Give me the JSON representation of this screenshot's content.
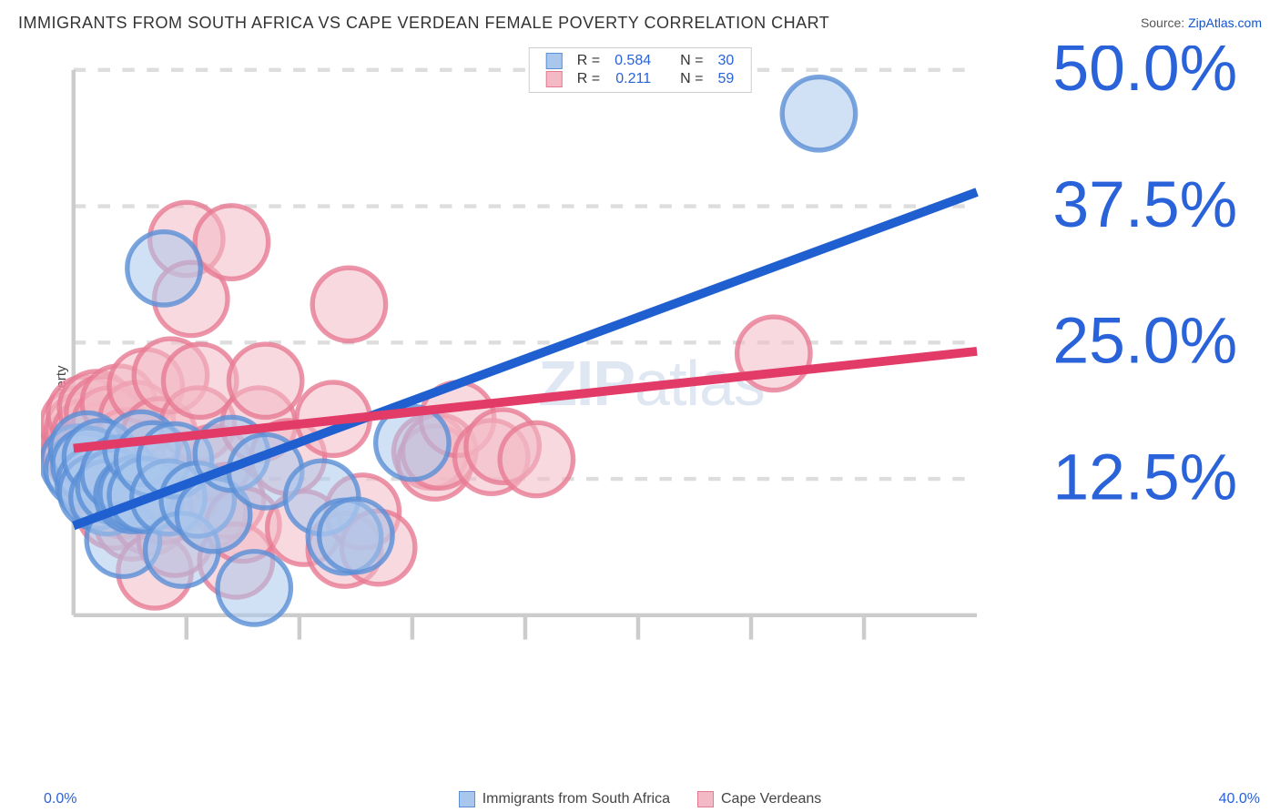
{
  "title": "IMMIGRANTS FROM SOUTH AFRICA VS CAPE VERDEAN FEMALE POVERTY CORRELATION CHART",
  "source_label": "Source: ",
  "source_name": "ZipAtlas.com",
  "ylabel": "Female Poverty",
  "watermark_bold": "ZIP",
  "watermark_light": "atlas",
  "chart": {
    "type": "scatter",
    "xlim": [
      0,
      40
    ],
    "ylim": [
      0,
      50
    ],
    "x_ticks": [
      0,
      40
    ],
    "x_tick_labels": [
      "0.0%",
      "40.0%"
    ],
    "y_ticks": [
      12.5,
      25.0,
      37.5,
      50.0
    ],
    "y_tick_labels": [
      "12.5%",
      "25.0%",
      "37.5%",
      "50.0%"
    ],
    "x_minor_ticks": [
      5,
      10,
      15,
      20,
      25,
      30,
      35
    ],
    "grid_color": "#dddddd",
    "axis_color": "#cccccc",
    "tick_label_color": "#2962d9",
    "background_color": "#ffffff",
    "marker_radius": 9,
    "marker_opacity": 0.55,
    "marker_stroke_width": 1.2,
    "line_width": 2.2,
    "series": [
      {
        "name": "Immigrants from South Africa",
        "fill_color": "#a9c7ec",
        "stroke_color": "#5a8fd6",
        "line_color": "#1f5fd0",
        "R": "0.584",
        "N": "30",
        "trend": {
          "x1": 0,
          "y1": 8.2,
          "x2": 40,
          "y2": 38.8
        },
        "points": [
          [
            0.2,
            14.0
          ],
          [
            0.4,
            13.3
          ],
          [
            0.6,
            15.2
          ],
          [
            0.7,
            13.8
          ],
          [
            0.9,
            12.0
          ],
          [
            1.0,
            11.3
          ],
          [
            1.2,
            14.5
          ],
          [
            1.5,
            10.8
          ],
          [
            1.8,
            11.8
          ],
          [
            2.0,
            13.0
          ],
          [
            2.2,
            6.9
          ],
          [
            2.6,
            11.0
          ],
          [
            2.8,
            11.2
          ],
          [
            3.0,
            15.3
          ],
          [
            3.2,
            11.0
          ],
          [
            3.5,
            14.3
          ],
          [
            4.0,
            31.8
          ],
          [
            4.2,
            10.8
          ],
          [
            4.5,
            14.2
          ],
          [
            4.8,
            6.0
          ],
          [
            5.5,
            10.6
          ],
          [
            6.2,
            9.2
          ],
          [
            7.0,
            14.8
          ],
          [
            8.0,
            2.5
          ],
          [
            8.5,
            13.2
          ],
          [
            11.0,
            10.8
          ],
          [
            12.0,
            7.2
          ],
          [
            12.5,
            7.3
          ],
          [
            15.0,
            15.8
          ],
          [
            33.0,
            46.0
          ]
        ]
      },
      {
        "name": "Cape Verdeans",
        "fill_color": "#f3b9c5",
        "stroke_color": "#e77a93",
        "line_color": "#e23b68",
        "R": "0.211",
        "N": "59",
        "trend": {
          "x1": 0,
          "y1": 15.3,
          "x2": 40,
          "y2": 24.2
        },
        "points": [
          [
            0.2,
            15.5
          ],
          [
            0.2,
            17.5
          ],
          [
            0.3,
            15.0
          ],
          [
            0.4,
            17.0
          ],
          [
            0.5,
            18.5
          ],
          [
            0.6,
            14.0
          ],
          [
            0.7,
            16.5
          ],
          [
            0.8,
            13.0
          ],
          [
            0.9,
            15.5
          ],
          [
            1.0,
            19.0
          ],
          [
            1.1,
            12.5
          ],
          [
            1.2,
            16.0
          ],
          [
            1.3,
            18.5
          ],
          [
            1.4,
            11.0
          ],
          [
            1.5,
            14.5
          ],
          [
            1.6,
            17.5
          ],
          [
            1.8,
            9.5
          ],
          [
            1.9,
            13.0
          ],
          [
            2.0,
            19.5
          ],
          [
            2.2,
            10.5
          ],
          [
            2.4,
            15.5
          ],
          [
            2.6,
            8.5
          ],
          [
            2.8,
            18.0
          ],
          [
            3.0,
            11.5
          ],
          [
            3.2,
            21.0
          ],
          [
            3.4,
            9.0
          ],
          [
            3.6,
            4.0
          ],
          [
            3.8,
            16.5
          ],
          [
            4.0,
            10.0
          ],
          [
            4.3,
            22.0
          ],
          [
            4.5,
            7.0
          ],
          [
            4.8,
            11.2
          ],
          [
            5.0,
            34.5
          ],
          [
            5.2,
            29.0
          ],
          [
            5.5,
            17.5
          ],
          [
            5.6,
            21.5
          ],
          [
            6.0,
            9.5
          ],
          [
            6.2,
            14.0
          ],
          [
            6.8,
            10.5
          ],
          [
            7.0,
            34.2
          ],
          [
            7.2,
            5.0
          ],
          [
            7.5,
            8.3
          ],
          [
            8.2,
            17.5
          ],
          [
            8.5,
            21.5
          ],
          [
            9.5,
            14.5
          ],
          [
            10.2,
            8.0
          ],
          [
            11.5,
            18.0
          ],
          [
            12.0,
            6.0
          ],
          [
            12.2,
            28.5
          ],
          [
            12.8,
            9.5
          ],
          [
            13.5,
            6.2
          ],
          [
            15.8,
            15.0
          ],
          [
            16.0,
            14.0
          ],
          [
            16.2,
            15.0
          ],
          [
            17.0,
            18.0
          ],
          [
            18.5,
            14.5
          ],
          [
            19.0,
            15.5
          ],
          [
            20.5,
            14.3
          ],
          [
            31.0,
            24.0
          ]
        ]
      }
    ]
  },
  "top_legend": {
    "r_label": "R =",
    "n_label": "N ="
  }
}
